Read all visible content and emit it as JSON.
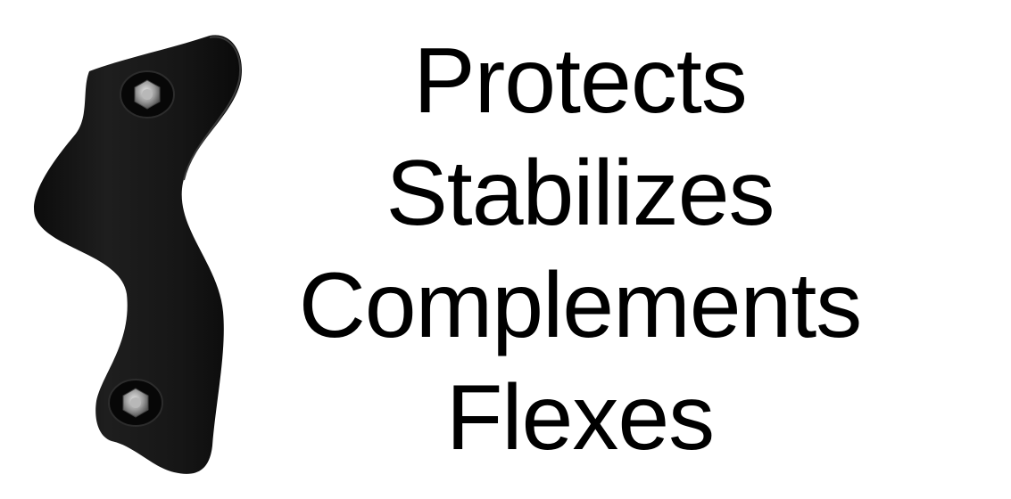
{
  "words": [
    "Protects",
    "Stabilizes",
    "Complements",
    "Flexes"
  ],
  "colors": {
    "background": "#ffffff",
    "text": "#000000",
    "product": "#141414"
  },
  "image": {
    "icon": "black-curved-bracket-with-two-bolts"
  }
}
